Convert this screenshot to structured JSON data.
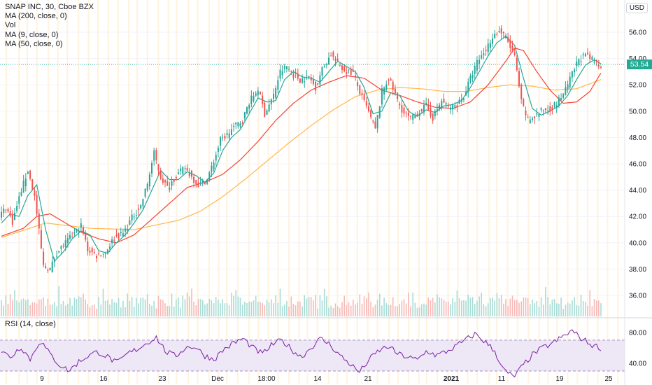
{
  "legend": {
    "symbol": "SNAP INC, 30, Cboe BZX",
    "ma200": "MA (200, close, 0)",
    "vol": "Vol",
    "ma9": "MA (9, close, 0)",
    "ma50": "MA (50, close, 0)"
  },
  "rsi_label": "RSI (14, close)",
  "currency": "USD",
  "last_price": "53.54",
  "colors": {
    "up": "#26a69a",
    "down": "#ef5350",
    "ma9": "#26a69a",
    "ma50": "#f44336",
    "ma200": "#ffb74d",
    "rsi": "#7b1fa2",
    "rsi_band": "#ede7f6",
    "session_stripe": "#fff3e0"
  },
  "chart_data": [
    {
      "type": "candlestick",
      "title": "SNAP INC, 30, Cboe BZX",
      "price_axis": {
        "ticks": [
          "56.00",
          "54.00",
          "52.00",
          "50.00",
          "48.00",
          "46.00",
          "44.00",
          "42.00",
          "40.00",
          "38.00",
          "36.00"
        ],
        "range": [
          35,
          57.3
        ]
      },
      "time_axis": {
        "ticks": [
          "9",
          "16",
          "23",
          "Dec",
          "18:00",
          "14",
          "21",
          "2021",
          "11",
          "19",
          "25"
        ]
      },
      "price_path": [
        [
          0,
          42.0
        ],
        [
          3,
          42.7
        ],
        [
          6,
          41.6
        ],
        [
          10,
          44.0
        ],
        [
          13,
          45.5
        ],
        [
          16,
          43.5
        ],
        [
          20,
          38.2
        ],
        [
          23,
          38.0
        ],
        [
          26,
          39.2
        ],
        [
          30,
          40.0
        ],
        [
          34,
          40.7
        ],
        [
          37,
          41.3
        ],
        [
          40,
          39.5
        ],
        [
          44,
          39.0
        ],
        [
          48,
          39.3
        ],
        [
          52,
          40.4
        ],
        [
          56,
          40.7
        ],
        [
          60,
          41.9
        ],
        [
          64,
          42.8
        ],
        [
          67,
          44.5
        ],
        [
          70,
          46.8
        ],
        [
          73,
          45.0
        ],
        [
          76,
          44.2
        ],
        [
          80,
          45.1
        ],
        [
          84,
          45.7
        ],
        [
          87,
          45.0
        ],
        [
          90,
          44.4
        ],
        [
          94,
          44.8
        ],
        [
          97,
          46.2
        ],
        [
          100,
          47.8
        ],
        [
          103,
          48.2
        ],
        [
          106,
          48.8
        ],
        [
          110,
          49.3
        ],
        [
          113,
          50.7
        ],
        [
          117,
          51.7
        ],
        [
          120,
          49.8
        ],
        [
          124,
          51.2
        ],
        [
          127,
          53.0
        ],
        [
          130,
          53.4
        ],
        [
          133,
          52.8
        ],
        [
          136,
          52.4
        ],
        [
          140,
          52.6
        ],
        [
          143,
          51.8
        ],
        [
          146,
          53.2
        ],
        [
          150,
          54.3
        ],
        [
          153,
          53.6
        ],
        [
          156,
          53.1
        ],
        [
          160,
          52.9
        ],
        [
          163,
          51.4
        ],
        [
          166,
          50.3
        ],
        [
          170,
          48.6
        ],
        [
          173,
          51.5
        ],
        [
          176,
          52.5
        ],
        [
          180,
          50.8
        ],
        [
          183,
          49.8
        ],
        [
          186,
          49.4
        ],
        [
          190,
          50.0
        ],
        [
          193,
          50.4
        ],
        [
          196,
          49.5
        ],
        [
          200,
          50.8
        ],
        [
          203,
          50.3
        ],
        [
          206,
          50.4
        ],
        [
          210,
          51.1
        ],
        [
          213,
          52.5
        ],
        [
          216,
          53.7
        ],
        [
          220,
          54.7
        ],
        [
          223,
          55.7
        ],
        [
          226,
          56.1
        ],
        [
          229,
          55.6
        ],
        [
          233,
          54.1
        ],
        [
          236,
          50.7
        ],
        [
          239,
          49.3
        ],
        [
          242,
          49.6
        ],
        [
          246,
          50.1
        ],
        [
          249,
          50.2
        ],
        [
          252,
          50.6
        ],
        [
          256,
          51.6
        ],
        [
          259,
          52.8
        ],
        [
          262,
          54.0
        ],
        [
          265,
          54.2
        ],
        [
          269,
          53.8
        ],
        [
          271,
          53.54
        ]
      ],
      "ma9_path": [
        [
          0,
          41.5
        ],
        [
          4,
          42.2
        ],
        [
          8,
          42.0
        ],
        [
          12,
          43.6
        ],
        [
          16,
          44.4
        ],
        [
          20,
          41.0
        ],
        [
          24,
          38.6
        ],
        [
          28,
          39.3
        ],
        [
          32,
          40.3
        ],
        [
          36,
          40.9
        ],
        [
          40,
          40.6
        ],
        [
          44,
          39.4
        ],
        [
          48,
          39.2
        ],
        [
          52,
          40.0
        ],
        [
          56,
          40.6
        ],
        [
          60,
          41.5
        ],
        [
          64,
          42.5
        ],
        [
          68,
          44.0
        ],
        [
          72,
          45.5
        ],
        [
          76,
          44.8
        ],
        [
          80,
          44.8
        ],
        [
          84,
          45.4
        ],
        [
          88,
          45.1
        ],
        [
          92,
          44.6
        ],
        [
          96,
          45.3
        ],
        [
          100,
          47.0
        ],
        [
          104,
          48.0
        ],
        [
          108,
          48.6
        ],
        [
          112,
          49.8
        ],
        [
          116,
          51.0
        ],
        [
          120,
          50.7
        ],
        [
          124,
          50.8
        ],
        [
          128,
          52.4
        ],
        [
          132,
          53.0
        ],
        [
          136,
          52.6
        ],
        [
          140,
          52.5
        ],
        [
          144,
          52.2
        ],
        [
          148,
          53.0
        ],
        [
          152,
          53.8
        ],
        [
          156,
          53.4
        ],
        [
          160,
          53.0
        ],
        [
          164,
          51.8
        ],
        [
          168,
          49.8
        ],
        [
          172,
          50.0
        ],
        [
          176,
          51.4
        ],
        [
          180,
          51.2
        ],
        [
          184,
          50.0
        ],
        [
          188,
          49.6
        ],
        [
          192,
          50.1
        ],
        [
          196,
          49.9
        ],
        [
          200,
          50.4
        ],
        [
          204,
          50.5
        ],
        [
          208,
          50.8
        ],
        [
          212,
          51.8
        ],
        [
          216,
          53.0
        ],
        [
          220,
          54.2
        ],
        [
          224,
          55.2
        ],
        [
          228,
          55.7
        ],
        [
          232,
          55.0
        ],
        [
          236,
          52.5
        ],
        [
          240,
          50.2
        ],
        [
          244,
          49.7
        ],
        [
          248,
          50.0
        ],
        [
          252,
          50.4
        ],
        [
          256,
          51.2
        ],
        [
          260,
          52.4
        ],
        [
          264,
          53.5
        ],
        [
          268,
          53.9
        ],
        [
          271,
          53.6
        ]
      ],
      "ma50_path": [
        [
          0,
          40.5
        ],
        [
          10,
          41.1
        ],
        [
          16,
          42.0
        ],
        [
          22,
          42.2
        ],
        [
          28,
          41.6
        ],
        [
          36,
          40.8
        ],
        [
          44,
          40.3
        ],
        [
          52,
          40.0
        ],
        [
          60,
          40.6
        ],
        [
          68,
          41.8
        ],
        [
          76,
          43.0
        ],
        [
          84,
          44.2
        ],
        [
          92,
          44.6
        ],
        [
          100,
          45.2
        ],
        [
          108,
          46.3
        ],
        [
          116,
          47.7
        ],
        [
          124,
          49.3
        ],
        [
          132,
          50.6
        ],
        [
          140,
          51.6
        ],
        [
          148,
          52.2
        ],
        [
          156,
          52.7
        ],
        [
          164,
          52.5
        ],
        [
          172,
          51.6
        ],
        [
          180,
          51.2
        ],
        [
          188,
          50.7
        ],
        [
          196,
          50.3
        ],
        [
          204,
          50.2
        ],
        [
          212,
          50.7
        ],
        [
          220,
          52.0
        ],
        [
          228,
          53.8
        ],
        [
          232,
          54.8
        ],
        [
          236,
          54.6
        ],
        [
          242,
          53.0
        ],
        [
          248,
          51.6
        ],
        [
          254,
          50.6
        ],
        [
          260,
          50.7
        ],
        [
          266,
          51.5
        ],
        [
          271,
          52.9
        ]
      ],
      "ma200_path": [
        [
          0,
          40.4
        ],
        [
          20,
          41.5
        ],
        [
          40,
          41.1
        ],
        [
          60,
          41.0
        ],
        [
          80,
          41.7
        ],
        [
          90,
          42.4
        ],
        [
          100,
          43.5
        ],
        [
          110,
          44.8
        ],
        [
          120,
          46.2
        ],
        [
          130,
          47.6
        ],
        [
          140,
          48.9
        ],
        [
          150,
          50.1
        ],
        [
          160,
          51.1
        ],
        [
          170,
          51.6
        ],
        [
          180,
          51.8
        ],
        [
          190,
          51.7
        ],
        [
          200,
          51.5
        ],
        [
          210,
          51.5
        ],
        [
          220,
          51.8
        ],
        [
          230,
          52.0
        ],
        [
          240,
          51.9
        ],
        [
          250,
          51.6
        ],
        [
          260,
          51.7
        ],
        [
          271,
          52.4
        ]
      ],
      "volume_level": [
        0.3,
        0.25,
        0.4,
        0.2,
        0.5,
        0.3,
        0.9,
        0.35,
        0.25,
        0.3,
        0.2,
        0.45,
        0.3,
        0.25,
        0.2,
        0.35,
        0.3,
        0.5,
        0.25,
        0.3
      ],
      "rsi": {
        "ticks": [
          "80.00",
          "40.00"
        ],
        "upper": 70,
        "lower": 30,
        "range": [
          10,
          88
        ],
        "values": [
          55,
          48,
          62,
          45,
          70,
          52,
          38,
          30,
          42,
          50,
          55,
          48,
          40,
          52,
          58,
          66,
          74,
          55,
          49,
          60,
          62,
          50,
          45,
          58,
          66,
          72,
          60,
          52,
          64,
          70,
          58,
          48,
          60,
          72,
          64,
          50,
          40,
          28,
          44,
          56,
          62,
          52,
          48,
          44,
          56,
          50,
          55,
          62,
          70,
          78,
          68,
          56,
          30,
          22,
          38,
          52,
          60,
          66,
          74,
          82,
          72,
          64,
          60
        ]
      }
    }
  ]
}
